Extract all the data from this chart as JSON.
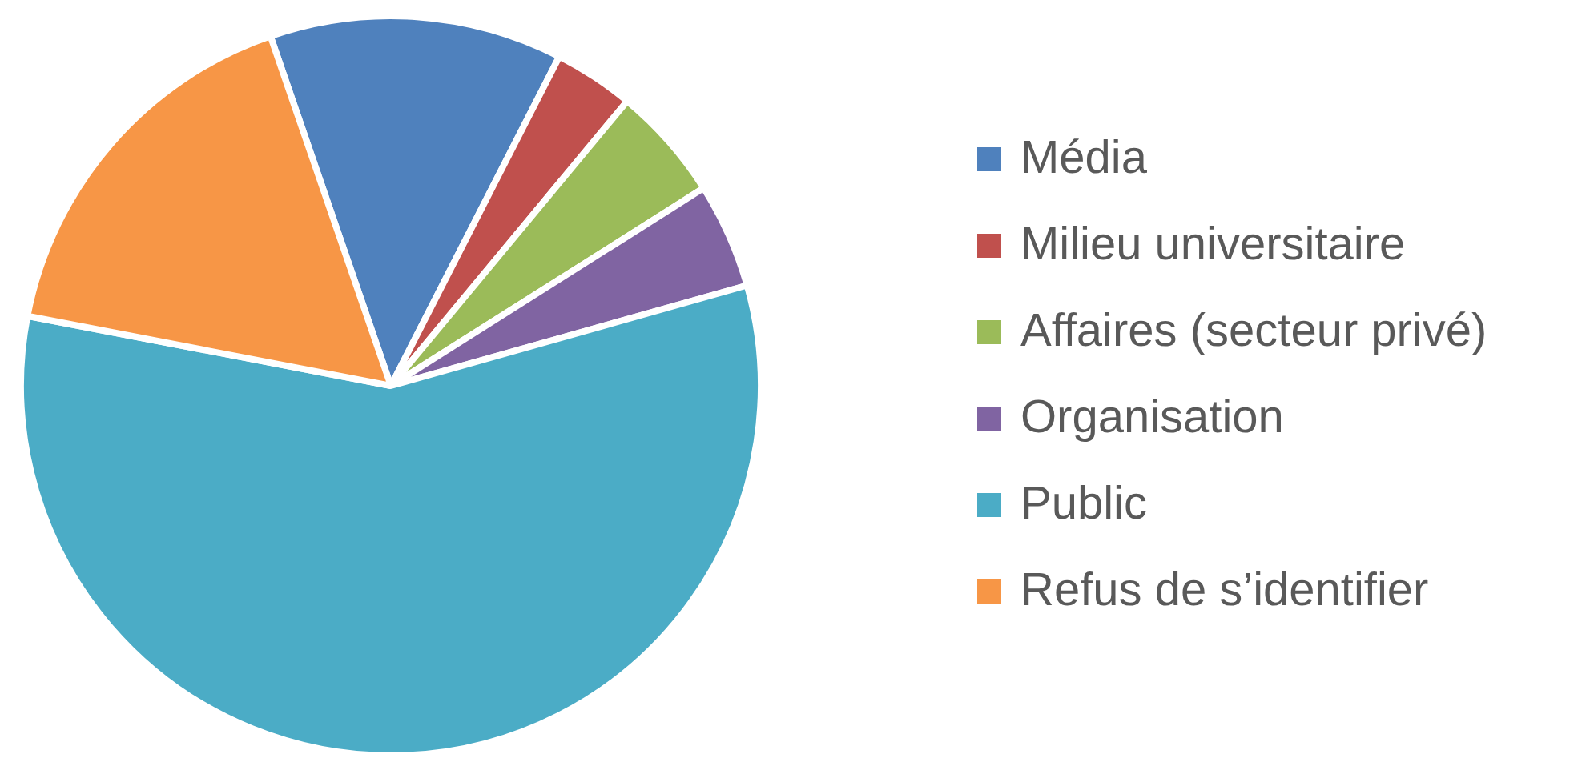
{
  "chart_data": {
    "type": "pie",
    "categories": [
      "Média",
      "Milieu universitaire",
      "Affaires (secteur privé)",
      "Organisation",
      "Public",
      "Refus de s’identifier"
    ],
    "values": [
      12.8,
      3.5,
      5.0,
      4.6,
      57.4,
      16.7
    ],
    "colors": [
      "#4f81bd",
      "#c0504d",
      "#9bbb59",
      "#8064a2",
      "#4bacc6",
      "#f79646"
    ],
    "legend": "right"
  }
}
